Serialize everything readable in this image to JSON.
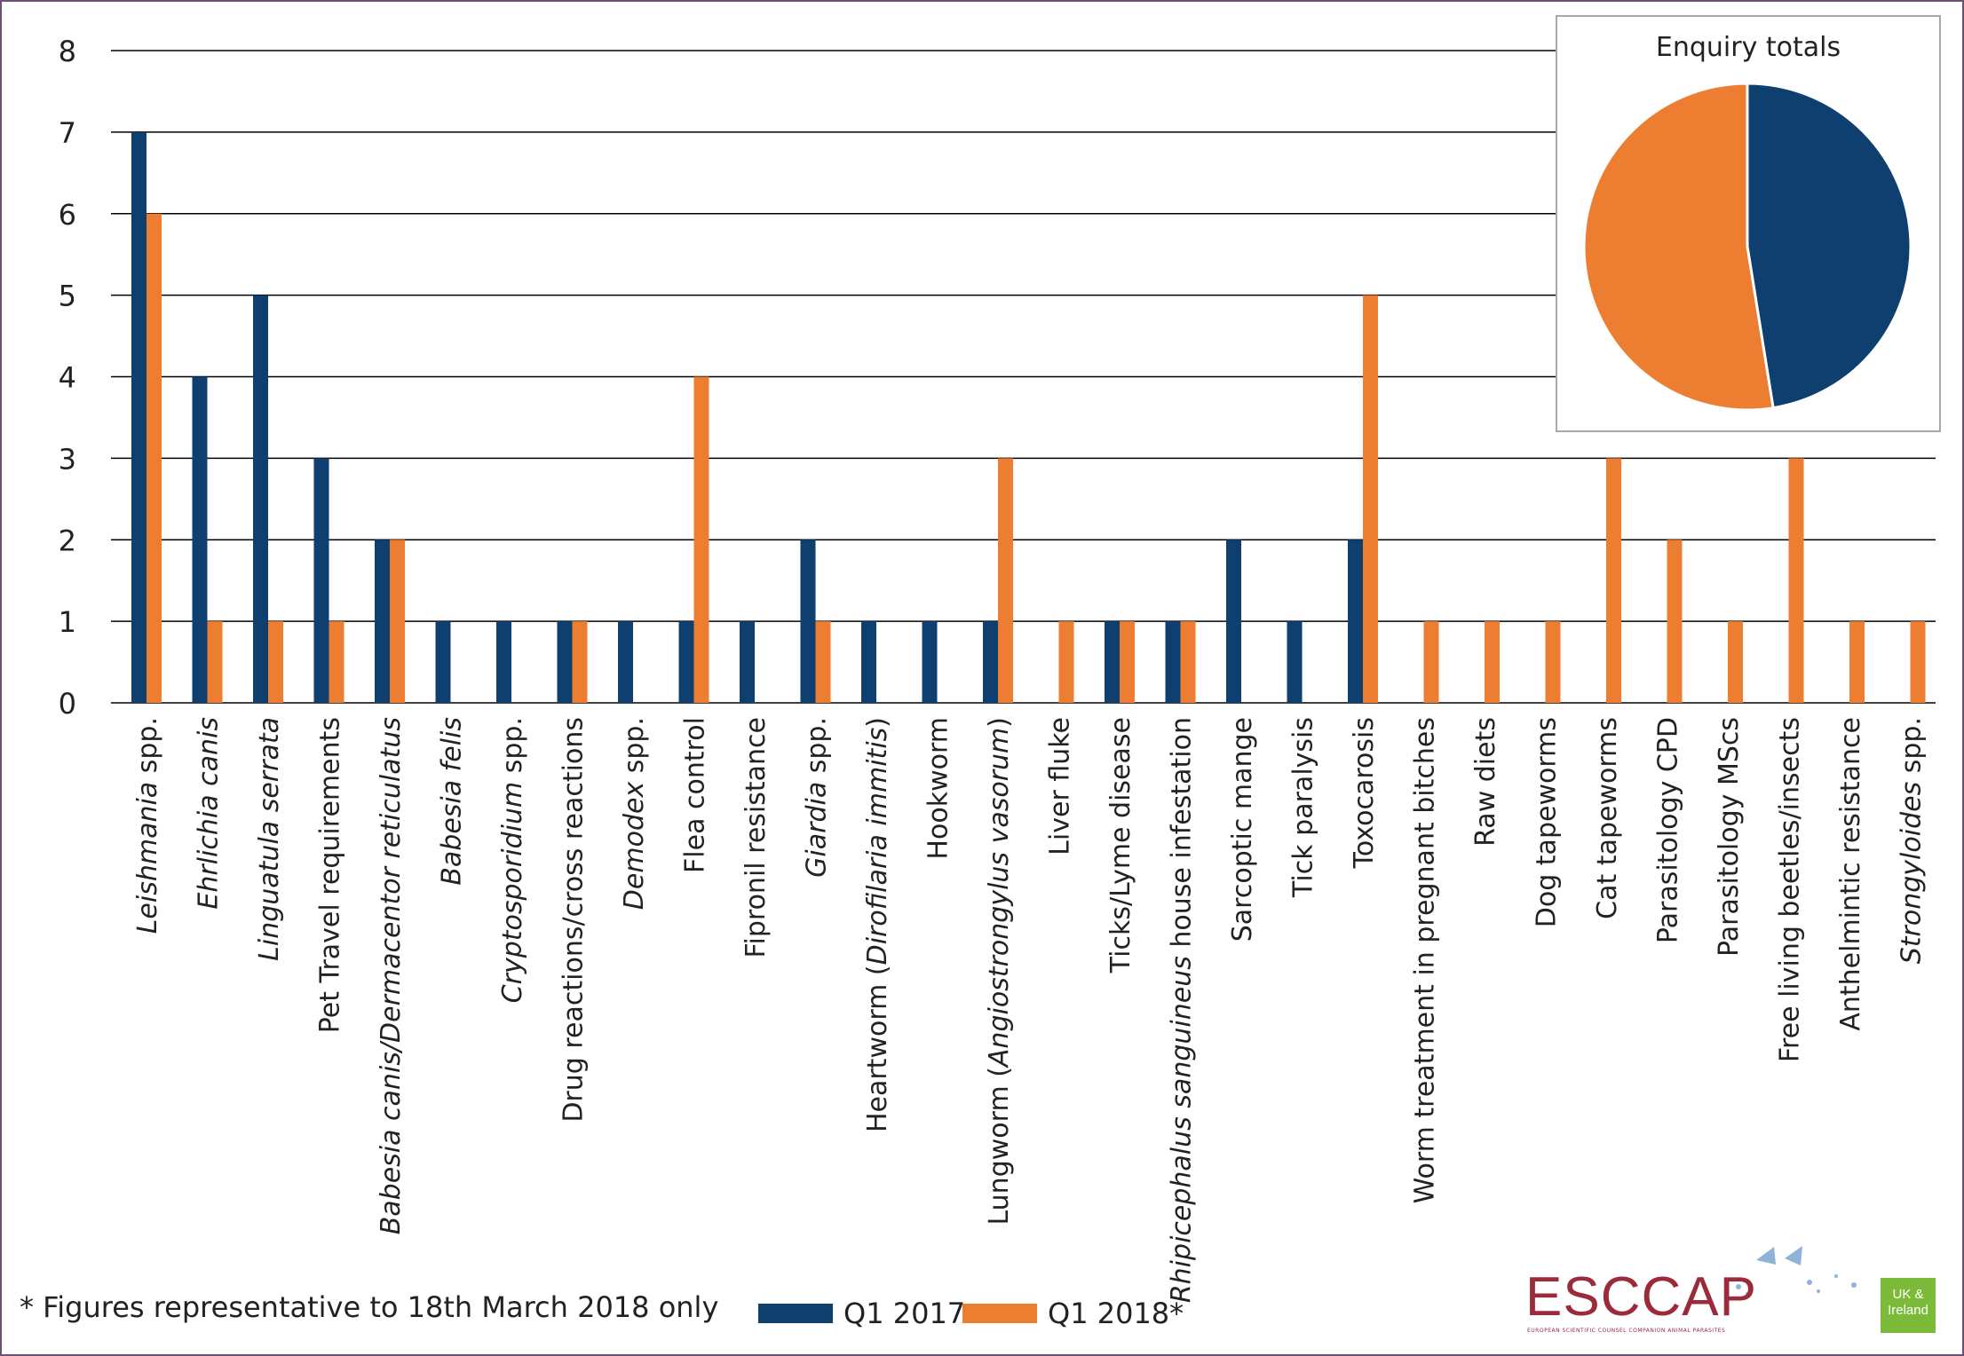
{
  "chart_data": [
    {
      "type": "bar",
      "ylim": [
        0,
        8
      ],
      "yticks": [
        "0",
        "1",
        "2",
        "3",
        "4",
        "5",
        "6",
        "7",
        "8"
      ],
      "grid": true,
      "categories": [
        [
          {
            "t": "Leishmania",
            "i": true
          },
          {
            "t": " spp.",
            "i": false
          }
        ],
        [
          {
            "t": "Ehrlichia canis",
            "i": true
          }
        ],
        [
          {
            "t": "Linguatula serrata",
            "i": true
          }
        ],
        [
          {
            "t": "Pet Travel requirements",
            "i": false
          }
        ],
        [
          {
            "t": "Babesia canis/Dermacentor reticulatus",
            "i": true
          }
        ],
        [
          {
            "t": "Babesia felis",
            "i": true
          }
        ],
        [
          {
            "t": "Cryptosporidium",
            "i": true
          },
          {
            "t": " spp.",
            "i": false
          }
        ],
        [
          {
            "t": "Drug reactions/cross reactions",
            "i": false
          }
        ],
        [
          {
            "t": "Demodex",
            "i": true
          },
          {
            "t": " spp.",
            "i": false
          }
        ],
        [
          {
            "t": "Flea control",
            "i": false
          }
        ],
        [
          {
            "t": "Fipronil resistance",
            "i": false
          }
        ],
        [
          {
            "t": "Giardia",
            "i": true
          },
          {
            "t": " spp.",
            "i": false
          }
        ],
        [
          {
            "t": "Heartworm (",
            "i": false
          },
          {
            "t": "Dirofilaria immitis",
            "i": true
          },
          {
            "t": ")",
            "i": false
          }
        ],
        [
          {
            "t": "Hookworm",
            "i": false
          }
        ],
        [
          {
            "t": "Lungworm (",
            "i": false
          },
          {
            "t": "Angiostrongylus vasorum",
            "i": true
          },
          {
            "t": ")",
            "i": false
          }
        ],
        [
          {
            "t": "Liver fluke",
            "i": false
          }
        ],
        [
          {
            "t": "Ticks/Lyme disease",
            "i": false
          }
        ],
        [
          {
            "t": "Rhipicephalus sanguineus",
            "i": true
          },
          {
            "t": " house infestation",
            "i": false
          }
        ],
        [
          {
            "t": "Sarcoptic mange",
            "i": false
          }
        ],
        [
          {
            "t": "Tick paralysis",
            "i": false
          }
        ],
        [
          {
            "t": "Toxocarosis",
            "i": false
          }
        ],
        [
          {
            "t": "Worm treatment in pregnant bitches",
            "i": false
          }
        ],
        [
          {
            "t": "Raw diets",
            "i": false
          }
        ],
        [
          {
            "t": "Dog tapeworms",
            "i": false
          }
        ],
        [
          {
            "t": "Cat tapeworms",
            "i": false
          }
        ],
        [
          {
            "t": "Parasitology CPD",
            "i": false
          }
        ],
        [
          {
            "t": "Parasitology MScs",
            "i": false
          }
        ],
        [
          {
            "t": "Free living beetles/insects",
            "i": false
          }
        ],
        [
          {
            "t": "Anthelmintic resistance",
            "i": false
          }
        ],
        [
          {
            "t": "Strongyloides",
            "i": true
          },
          {
            "t": " spp.",
            "i": false
          }
        ]
      ],
      "series": [
        {
          "name": "Q1 2017",
          "color": "#0e3f6e",
          "values": [
            7,
            4,
            5,
            3,
            2,
            1,
            1,
            1,
            1,
            1,
            1,
            2,
            1,
            1,
            1,
            0,
            1,
            1,
            2,
            1,
            2,
            0,
            0,
            0,
            0,
            0,
            0,
            0,
            0,
            0
          ]
        },
        {
          "name": "Q1 2018*",
          "color": "#ed7d31",
          "values": [
            6,
            1,
            1,
            1,
            2,
            0,
            0,
            1,
            0,
            4,
            0,
            1,
            0,
            0,
            3,
            1,
            1,
            1,
            0,
            0,
            5,
            1,
            1,
            1,
            3,
            2,
            1,
            3,
            1,
            1
          ]
        }
      ],
      "legend_position": "bottom"
    },
    {
      "type": "pie",
      "title": "Enquiry totals",
      "slices": [
        {
          "name": "Q1 2017",
          "value": 47,
          "color": "#0e3f6e"
        },
        {
          "name": "Q1 2018*",
          "value": 52,
          "color": "#ed7d31"
        }
      ]
    }
  ],
  "footnote": "* Figures representative to 18th March 2018 only",
  "legend": {
    "q2017": "Q1 2017",
    "q2018": "Q1 2018*",
    "color_2017": "#0e3f6e",
    "color_2018": "#ed7d31"
  },
  "logo": {
    "brand": "ESCCAP",
    "tagline": "EUROPEAN SCIENTIFIC COUNSEL COMPANION ANIMAL PARASITES",
    "badge": "UK & Ireland"
  }
}
